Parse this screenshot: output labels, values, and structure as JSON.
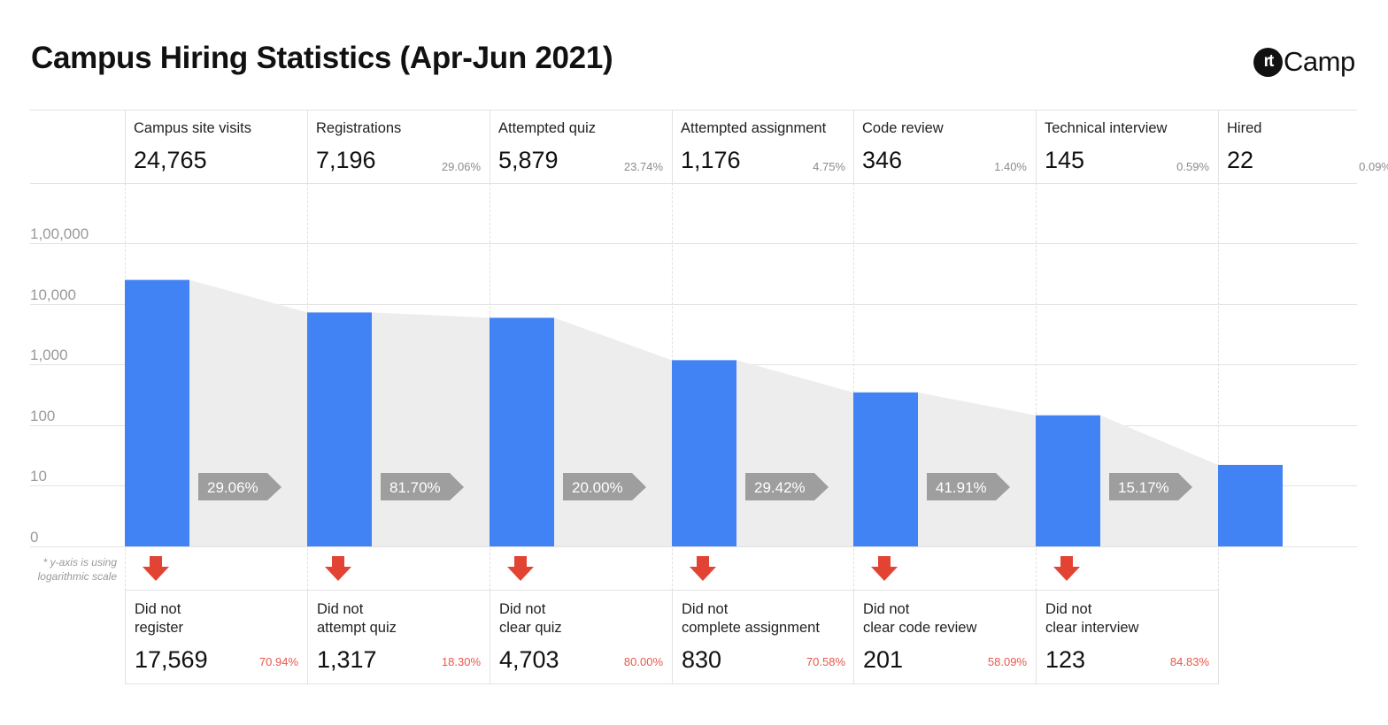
{
  "title": "Campus Hiring Statistics (Apr-Jun 2021)",
  "logo": {
    "mark": "rt",
    "word": "Camp"
  },
  "colors": {
    "bar": "#4183f4",
    "funnel": "#ededed",
    "tag": "#9e9e9e",
    "drop_arrow": "#e24333",
    "drop_pct": "#e8584c"
  },
  "stages": [
    {
      "label": "Campus site visits",
      "value": "24,765",
      "pct": ""
    },
    {
      "label": "Registrations",
      "value": "7,196",
      "pct": "29.06%"
    },
    {
      "label": "Attempted quiz",
      "value": "5,879",
      "pct": "23.74%"
    },
    {
      "label": "Attempted assignment",
      "value": "1,176",
      "pct": "4.75%"
    },
    {
      "label": "Code review",
      "value": "346",
      "pct": "1.40%"
    },
    {
      "label": "Technical interview",
      "value": "145",
      "pct": "0.59%"
    },
    {
      "label": "Hired",
      "value": "22",
      "pct": "0.09%"
    }
  ],
  "dropoffs": [
    {
      "line1": "Did not",
      "line2": "register",
      "value": "17,569",
      "pct": "70.94%"
    },
    {
      "line1": "Did not",
      "line2": "attempt quiz",
      "value": "1,317",
      "pct": "18.30%"
    },
    {
      "line1": "Did not",
      "line2": "clear quiz",
      "value": "4,703",
      "pct": "80.00%"
    },
    {
      "line1": "Did not",
      "line2": "complete assignment",
      "value": "830",
      "pct": "70.58%"
    },
    {
      "line1": "Did not",
      "line2": "clear code review",
      "value": "201",
      "pct": "58.09%"
    },
    {
      "line1": "Did not",
      "line2": "clear interview",
      "value": "123",
      "pct": "84.83%"
    }
  ],
  "note": {
    "line1": "* y-axis is using",
    "line2": "logarithmic scale"
  },
  "chart_data": {
    "type": "bar",
    "scale": "log",
    "categories": [
      "Campus site visits",
      "Registrations",
      "Attempted quiz",
      "Attempted assignment",
      "Code review",
      "Technical interview",
      "Hired"
    ],
    "values": [
      24765,
      7196,
      5879,
      1176,
      346,
      145,
      22
    ],
    "conversion_rates": [
      "29.06%",
      "81.70%",
      "20.00%",
      "29.42%",
      "41.91%",
      "15.17%"
    ],
    "yticks": [
      "0",
      "10",
      "100",
      "1,000",
      "10,000",
      "1,00,000"
    ],
    "ylim": [
      1,
      100000
    ],
    "grid": true
  }
}
